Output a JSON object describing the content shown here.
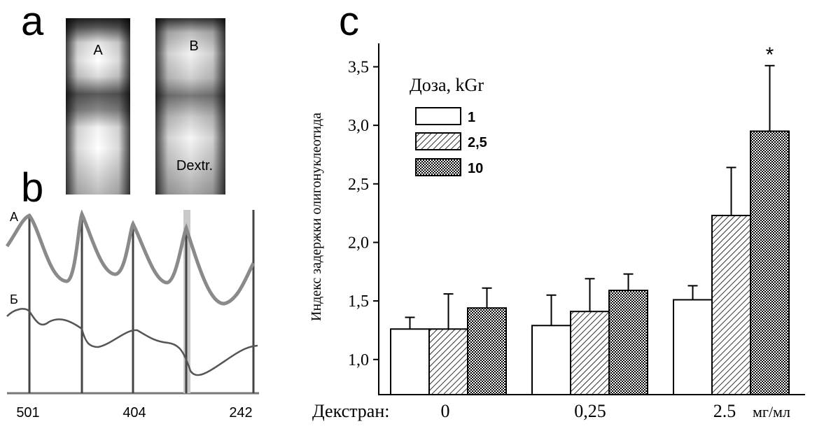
{
  "panels": {
    "a": {
      "letter": "a",
      "lane_left_label": "A",
      "lane_right_label": "B",
      "lane_right_sublabel": "Dextr."
    },
    "b": {
      "letter": "b",
      "trace_top_label": "A",
      "trace_bottom_label": "Б",
      "x_tick_labels": [
        "501",
        "404",
        "242"
      ]
    },
    "c": {
      "letter": "c"
    }
  },
  "chart_data": {
    "type": "bar",
    "title": "",
    "xlabel_prefix": "Декстран:",
    "x_unit": "мг/мл",
    "ylabel": "Индекс задержки олигонуклеотида",
    "categories": [
      "0",
      "0,25",
      "2.5"
    ],
    "legend_title": "Доза, kGr",
    "legend_position": "top-left",
    "series": [
      {
        "name": "1",
        "pattern": "none",
        "values": [
          1.26,
          1.29,
          1.51
        ],
        "errors": [
          0.1,
          0.26,
          0.12
        ]
      },
      {
        "name": "2,5",
        "pattern": "hatch",
        "values": [
          1.26,
          1.41,
          2.23
        ],
        "errors": [
          0.3,
          0.28,
          0.41
        ]
      },
      {
        "name": "10",
        "pattern": "cross",
        "values": [
          1.44,
          1.59,
          2.95
        ],
        "errors": [
          0.17,
          0.14,
          0.56
        ]
      }
    ],
    "annotations": [
      {
        "category": "2.5",
        "series": "10",
        "text": "*"
      }
    ],
    "ylim": [
      0.7,
      3.7
    ],
    "yticks": [
      "1,0",
      "1,5",
      "2,0",
      "2,5",
      "3,0",
      "3,5"
    ],
    "ytick_values": [
      1.0,
      1.5,
      2.0,
      2.5,
      3.0,
      3.5
    ],
    "grid": false
  }
}
